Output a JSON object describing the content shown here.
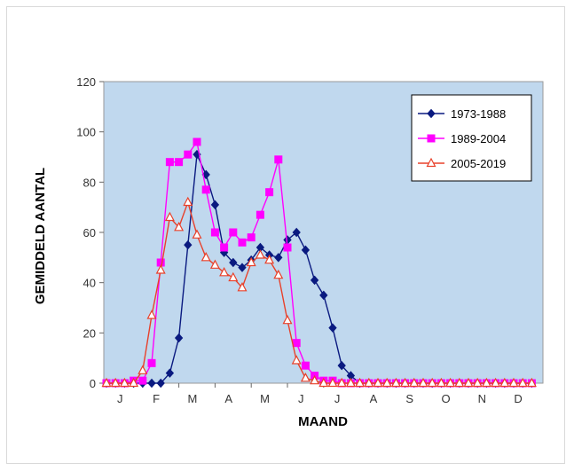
{
  "chart_data": {
    "type": "line",
    "xlabel": "MAAND",
    "ylabel": "GEMIDDELD AANTAL",
    "ylim": [
      0,
      120
    ],
    "yticks": [
      0,
      20,
      40,
      60,
      80,
      100,
      120
    ],
    "month_labels": [
      "J",
      "F",
      "M",
      "A",
      "M",
      "J",
      "J",
      "A",
      "S",
      "O",
      "N",
      "D"
    ],
    "x_unit": "week index (4 points per month, starting at index 0 = early January)",
    "plot_background": "#c0d8ee",
    "legend_position": "top-right",
    "series": [
      {
        "name": "1973-1988",
        "color": "#0a1a80",
        "marker": "diamond",
        "values": [
          0,
          0,
          0,
          0,
          0,
          0,
          0,
          4,
          18,
          55,
          91,
          83,
          71,
          52,
          48,
          46,
          49,
          54,
          51,
          50,
          57,
          60,
          53,
          41,
          35,
          22,
          7,
          3,
          0,
          0,
          0,
          0,
          0,
          0,
          0,
          0,
          0,
          0,
          0,
          0,
          0,
          0,
          0,
          0,
          0,
          0,
          0,
          0
        ]
      },
      {
        "name": "1989-2004",
        "color": "#ff00ff",
        "marker": "square",
        "values": [
          0,
          0,
          0,
          1,
          1,
          8,
          48,
          88,
          88,
          91,
          96,
          77,
          60,
          54,
          60,
          56,
          58,
          67,
          76,
          89,
          54,
          16,
          7,
          3,
          1,
          1,
          0,
          0,
          0,
          0,
          0,
          0,
          0,
          0,
          0,
          0,
          0,
          0,
          0,
          0,
          0,
          0,
          0,
          0,
          0,
          0,
          0,
          0
        ]
      },
      {
        "name": "2005-2019",
        "color": "#e8402a",
        "marker": "triangle",
        "values": [
          0,
          0,
          0,
          0,
          5,
          27,
          45,
          66,
          62,
          72,
          59,
          50,
          47,
          44,
          42,
          38,
          48,
          51,
          49,
          43,
          25,
          9,
          2,
          1,
          0,
          0,
          0,
          0,
          0,
          0,
          0,
          0,
          0,
          0,
          0,
          0,
          0,
          0,
          0,
          0,
          0,
          0,
          0,
          0,
          0,
          0,
          0,
          0
        ]
      }
    ]
  }
}
